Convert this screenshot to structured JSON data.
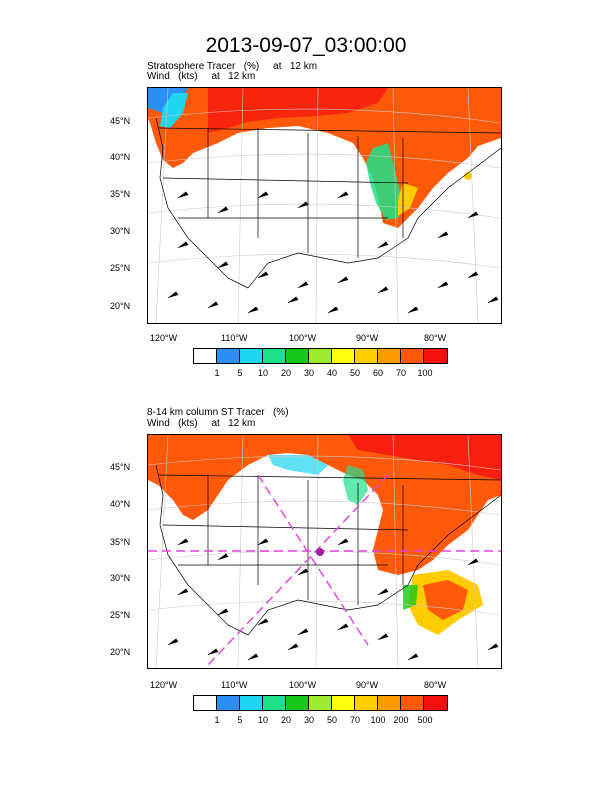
{
  "title": "2013-09-07_03:00:00",
  "panel1": {
    "line1": "Stratosphere Tracer   (%)     at   12 km",
    "line2": "Wind   (kts)     at   12 km",
    "lat_labels": [
      "45°N",
      "40°N",
      "35°N",
      "30°N",
      "25°N",
      "20°N"
    ],
    "lon_labels": [
      "120°W",
      "110°W",
      "100°W",
      "90°W",
      "80°W"
    ],
    "colorbar_labels": [
      "1",
      "5",
      "10",
      "20",
      "30",
      "40",
      "50",
      "60",
      "70",
      "100"
    ]
  },
  "panel2": {
    "line1": "8-14 km column ST Tracer   (%)",
    "line2": "Wind   (kts)     at   12 km",
    "lat_labels": [
      "45°N",
      "40°N",
      "35°N",
      "30°N",
      "25°N",
      "20°N"
    ],
    "lon_labels": [
      "120°W",
      "110°W",
      "100°W",
      "90°W",
      "80°W"
    ],
    "colorbar_labels": [
      "1",
      "5",
      "10",
      "20",
      "30",
      "50",
      "70",
      "100",
      "200",
      "500"
    ]
  },
  "colors": {
    "levels": [
      "#ffffff",
      "#2b8ff5",
      "#1ed6f0",
      "#1fe08a",
      "#18c818",
      "#9ceb2e",
      "#ffff10",
      "#ffcc00",
      "#ff9a00",
      "#ff5a0a",
      "#f51010"
    ]
  }
}
